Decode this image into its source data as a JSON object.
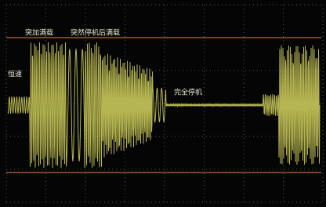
{
  "labels": {
    "sudden_full_load": "突加满载",
    "full_load_after_stop": "突然停机后满载",
    "constant_speed": "恒速",
    "full_stop": "完全停机"
  }
}
